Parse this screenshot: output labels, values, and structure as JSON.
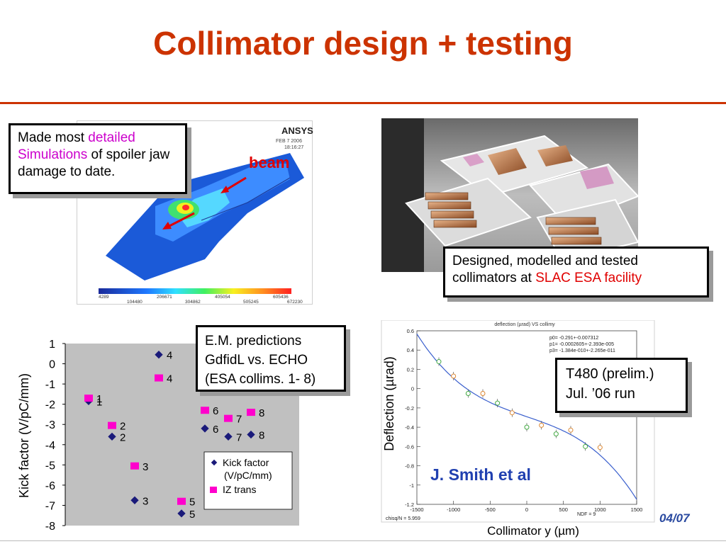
{
  "title": "Collimator design + testing",
  "callouts": {
    "sim": {
      "p1": "Made most ",
      "p2": "detailed Simulations",
      "p3": " of spoiler jaw damage to date."
    },
    "photo": {
      "p1": "Designed, modelled and tested collimators at ",
      "p2": "SLAC ESA facility"
    },
    "em": {
      "line1": "E.M. predictions",
      "line2": "GdfidL vs. ECHO",
      "line3": "(ESA collims. 1- 8)"
    },
    "t480": {
      "line1": "T480 (prelim.)",
      "line2": "Jul. ’06 run"
    }
  },
  "ansys": {
    "logo": "ANSYS",
    "date": "FEB  7 2006",
    "time": "18:16:27",
    "beam_label": "beam",
    "colorbar_top": [
      "4289",
      "206671",
      "405054",
      "605436"
    ],
    "colorbar_bottom": [
      "104480",
      "304862",
      "505245",
      "672230"
    ]
  },
  "chart_data": [
    {
      "type": "scatter",
      "ylabel": "Kick factor (V/pC/mm)",
      "ylim": [
        -8,
        1
      ],
      "yticks": [
        "1",
        "0",
        "-1",
        "-2",
        "-3",
        "-4",
        "-5",
        "-6",
        "-7",
        "-8"
      ],
      "grid": false,
      "legend": "bottom-right",
      "series": [
        {
          "name": "Kick factor (V/pC/mm)",
          "color": "#1a1a7a",
          "points": [
            {
              "label": "1",
              "y": -1.85
            },
            {
              "label": "2",
              "y": -3.6
            },
            {
              "label": "3",
              "y": -6.75
            },
            {
              "label": "4",
              "y": 0.45
            },
            {
              "label": "5",
              "y": -7.4
            },
            {
              "label": "6",
              "y": -3.2
            },
            {
              "label": "7",
              "y": -3.6
            },
            {
              "label": "8",
              "y": -3.5
            }
          ]
        },
        {
          "name": "IZ trans",
          "color": "#ff00cc",
          "points": [
            {
              "label": "1",
              "y": -1.7
            },
            {
              "label": "2",
              "y": -3.05
            },
            {
              "label": "3",
              "y": -5.05
            },
            {
              "label": "4",
              "y": -0.7
            },
            {
              "label": "5",
              "y": -6.8
            },
            {
              "label": "6",
              "y": -2.3
            },
            {
              "label": "7",
              "y": -2.7
            },
            {
              "label": "8",
              "y": -2.4
            }
          ]
        }
      ]
    },
    {
      "type": "scatter",
      "title": "deflection (µrad) VS collimy",
      "xlabel": "Collimator y (µm)",
      "ylabel": "Deflection (µrad)",
      "xlim": [
        -1500,
        1500
      ],
      "ylim": [
        -1.2,
        0.6
      ],
      "xticks": [
        "-1500",
        "-1000",
        "-500",
        "0",
        "500",
        "1000",
        "1500"
      ],
      "yticks": [
        "0.6",
        "0.4",
        "0.2",
        "0",
        "-0.2",
        "-0.4",
        "-0.6",
        "-0.8",
        "-1",
        "-1.2"
      ],
      "fit_text": [
        "p0= -0.291+-0.007312",
        "p1= -0.0002605+-2.393e-005",
        "p3= -1.384e-010+-2.265e-011"
      ],
      "chisq": "chisq/N = 5.959",
      "ndf_text": "NDF = 9",
      "points": [
        {
          "x": -1200,
          "y": 0.28
        },
        {
          "x": -1000,
          "y": 0.13
        },
        {
          "x": -800,
          "y": -0.05
        },
        {
          "x": -600,
          "y": -0.05
        },
        {
          "x": -400,
          "y": -0.15
        },
        {
          "x": -200,
          "y": -0.25
        },
        {
          "x": 0,
          "y": -0.4
        },
        {
          "x": 200,
          "y": -0.38
        },
        {
          "x": 400,
          "y": -0.47
        },
        {
          "x": 600,
          "y": -0.43
        },
        {
          "x": 800,
          "y": -0.6
        },
        {
          "x": 1000,
          "y": -0.61
        }
      ],
      "fit_color": "#3a5fcd",
      "point_colors": [
        "#44aa44",
        "#dd8833"
      ]
    }
  ],
  "citation": "J. Smith et al",
  "date_fragment": "04/07"
}
